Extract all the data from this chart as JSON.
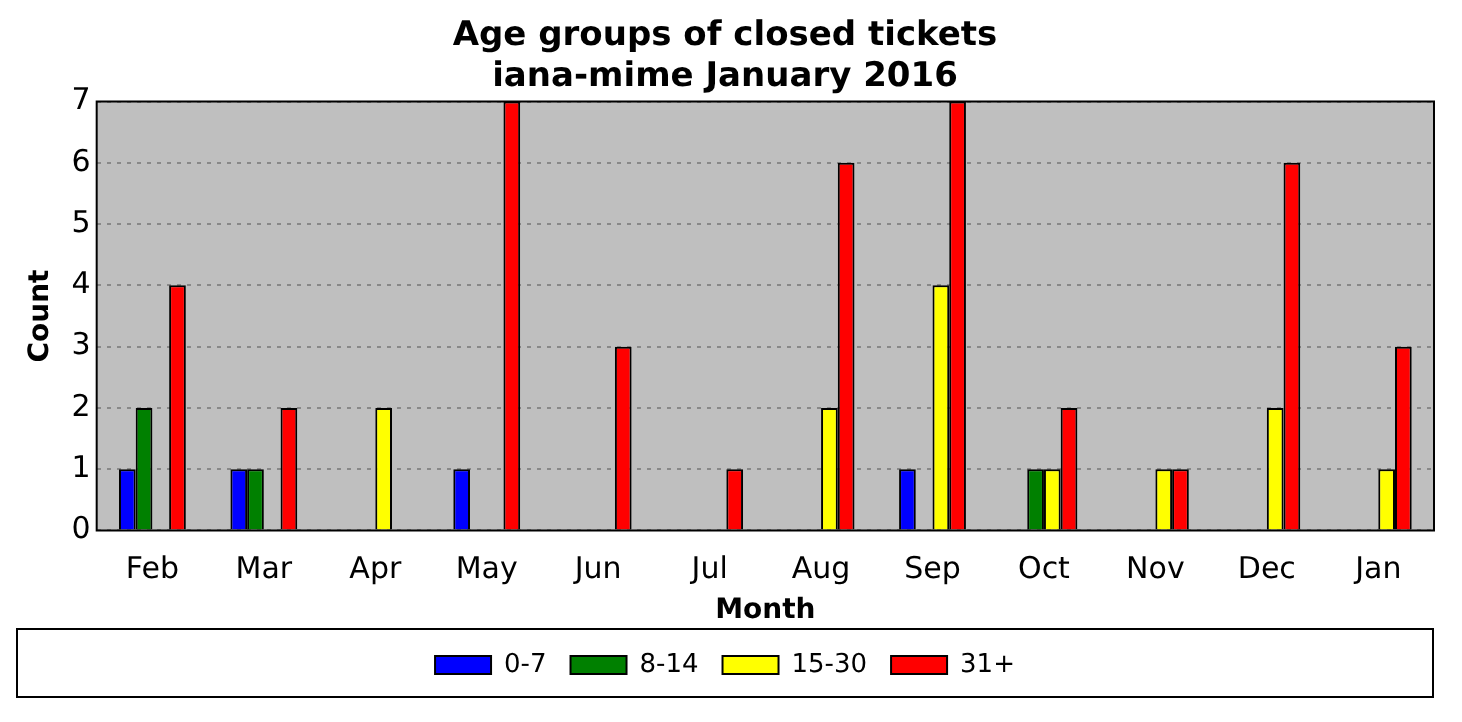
{
  "chart_data": {
    "type": "bar",
    "title": "Age groups of closed tickets\niana-mime January 2016",
    "xlabel": "Month",
    "ylabel": "Count",
    "categories": [
      "Feb",
      "Mar",
      "Apr",
      "May",
      "Jun",
      "Jul",
      "Aug",
      "Sep",
      "Oct",
      "Nov",
      "Dec",
      "Jan"
    ],
    "series": [
      {
        "name": "0-7",
        "color": "#0000ff",
        "values": [
          1,
          1,
          0,
          1,
          0,
          0,
          0,
          1,
          0,
          0,
          0,
          0
        ]
      },
      {
        "name": "8-14",
        "color": "#008000",
        "values": [
          2,
          1,
          0,
          0,
          0,
          0,
          0,
          0,
          1,
          0,
          0,
          0
        ]
      },
      {
        "name": "15-30",
        "color": "#ffff00",
        "values": [
          0,
          0,
          2,
          0,
          0,
          0,
          2,
          4,
          1,
          1,
          2,
          1
        ]
      },
      {
        "name": "31+",
        "color": "#ff0000",
        "values": [
          4,
          2,
          0,
          7,
          3,
          1,
          6,
          7,
          2,
          1,
          6,
          3
        ]
      }
    ],
    "ylim": [
      0,
      7
    ],
    "yticks": [
      0,
      1,
      2,
      3,
      4,
      5,
      6,
      7
    ],
    "grid": "y",
    "legend": "bottom"
  }
}
